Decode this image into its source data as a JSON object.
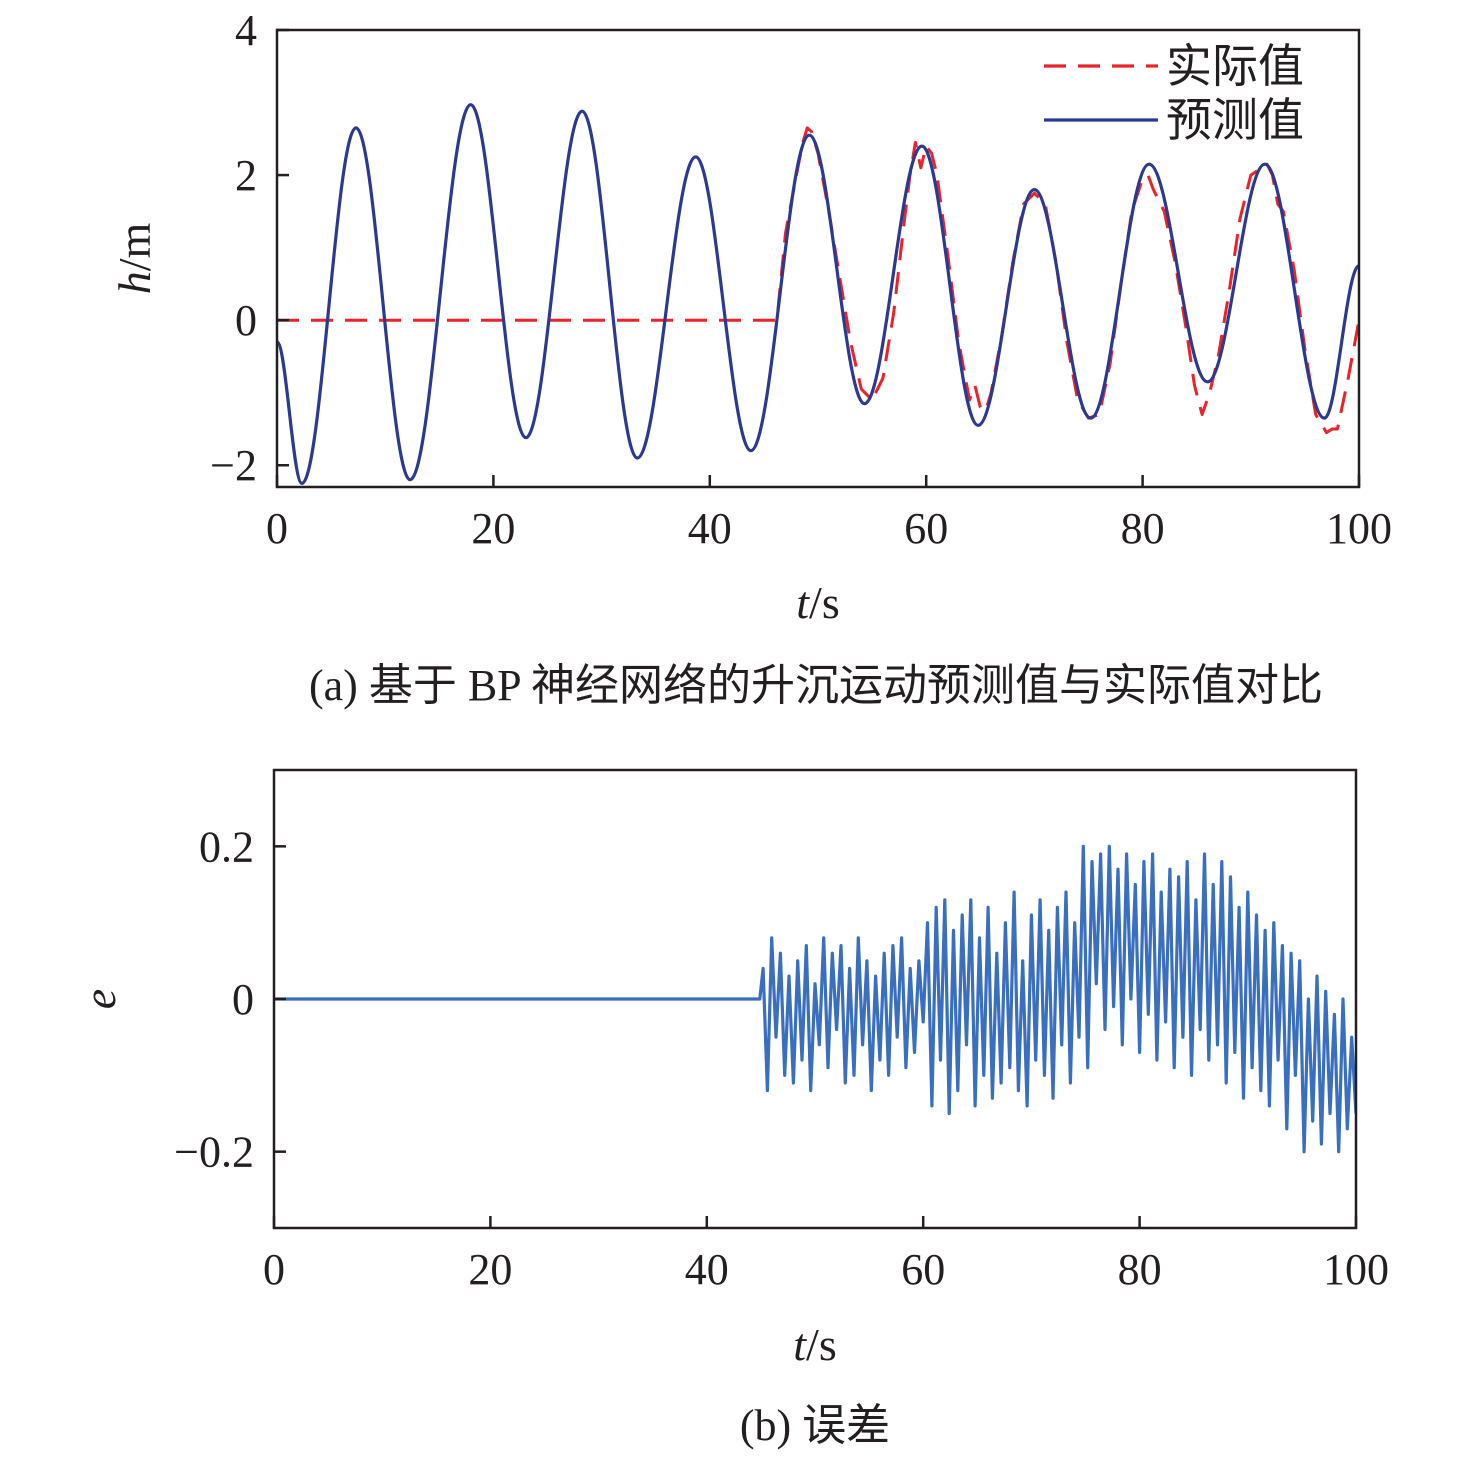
{
  "chart_data": [
    {
      "type": "line",
      "caption": "(a) 基于 BP 神经网络的升沉运动预测值与实际值对比",
      "xlabel": {
        "var": "t",
        "unit": "/s"
      },
      "ylabel": {
        "var": "h",
        "unit": "/m"
      },
      "xlim": [
        0,
        100
      ],
      "ylim": [
        -2.3,
        4
      ],
      "xticks": [
        0,
        20,
        40,
        60,
        80,
        100
      ],
      "yticks": [
        -2,
        0,
        2,
        4
      ],
      "ytick_labels": [
        "−2",
        "0",
        "2",
        "4"
      ],
      "legend_position": "top-right",
      "grid": false,
      "series": [
        {
          "name": "实际值",
          "style": "dashed",
          "color": "#e8232a",
          "x": [
            0,
            46.2,
            47,
            48,
            48.6,
            49,
            49.4,
            50,
            51,
            52,
            53,
            54,
            55,
            56,
            57,
            58,
            58.5,
            59,
            59.5,
            60,
            60.5,
            61,
            62,
            63,
            64,
            64.5,
            65,
            65.5,
            66,
            67,
            68,
            69,
            70,
            71,
            72,
            73,
            74,
            75,
            76,
            77,
            78,
            79,
            80,
            80.5,
            81,
            82,
            83,
            84,
            84.8,
            85.5,
            86.2,
            87,
            88,
            89,
            90,
            91,
            91.5,
            92,
            92.5,
            93,
            94,
            95,
            96,
            97,
            97.5,
            98,
            99,
            100
          ],
          "y": [
            0,
            0,
            1.2,
            2.0,
            2.45,
            2.65,
            2.6,
            2.3,
            1.5,
            0.6,
            -0.3,
            -0.95,
            -1.1,
            -0.8,
            0.1,
            1.4,
            2.0,
            2.45,
            2.1,
            2.4,
            2.3,
            2.0,
            0.9,
            -0.3,
            -1.1,
            -0.9,
            -1.2,
            -1.25,
            -1.0,
            -0.2,
            0.8,
            1.6,
            1.75,
            1.6,
            0.8,
            -0.3,
            -1.1,
            -1.35,
            -1.3,
            -0.6,
            0.5,
            1.5,
            1.95,
            2.0,
            1.8,
            1.5,
            0.8,
            -0.1,
            -0.9,
            -1.3,
            -1.0,
            -0.5,
            0.4,
            1.4,
            2.0,
            2.1,
            2.15,
            2.0,
            1.6,
            1.5,
            0.7,
            -0.4,
            -1.3,
            -1.55,
            -1.5,
            -1.5,
            -0.8,
            0.0
          ]
        },
        {
          "name": "预测值",
          "style": "solid",
          "color": "#2b3990",
          "x": [
            0,
            2.3,
            7.3,
            12.3,
            17.9,
            23.0,
            28.2,
            33.3,
            38.7,
            43.8,
            49.2,
            54.3,
            59.6,
            64.8,
            70.0,
            75.2,
            80.6,
            86.0,
            91.3,
            96.8,
            100
          ],
          "y": [
            -0.3,
            -2.25,
            2.65,
            -2.2,
            2.97,
            -1.62,
            2.88,
            -1.9,
            2.25,
            -1.8,
            2.55,
            -1.15,
            2.4,
            -1.45,
            1.8,
            -1.35,
            2.15,
            -0.85,
            2.15,
            -1.35,
            0.75
          ]
        }
      ]
    },
    {
      "type": "line",
      "caption": "(b) 误差",
      "xlabel": {
        "var": "t",
        "unit": "/s"
      },
      "ylabel": {
        "var": "e",
        "unit": ""
      },
      "xlim": [
        0,
        100
      ],
      "ylim": [
        -0.3,
        0.3
      ],
      "xticks": [
        0,
        20,
        40,
        60,
        80,
        100
      ],
      "yticks": [
        -0.2,
        0,
        0.2
      ],
      "ytick_labels": [
        "−0.2",
        "0",
        "0.2"
      ],
      "grid": false,
      "series": [
        {
          "color": "#3a6fc0",
          "style": "solid",
          "x": [
            0,
            44.9,
            45.2,
            45.6,
            46.0,
            46.4,
            46.8,
            47.2,
            47.6,
            48.0,
            48.4,
            48.8,
            49.2,
            49.6,
            50.0,
            50.4,
            50.8,
            51.2,
            51.6,
            52.0,
            52.4,
            52.8,
            53.2,
            53.6,
            54.0,
            54.4,
            54.8,
            55.2,
            55.6,
            56.0,
            56.4,
            56.8,
            57.2,
            57.6,
            58.0,
            58.4,
            58.8,
            59.2,
            59.6,
            60.0,
            60.4,
            60.8,
            61.2,
            61.6,
            62.0,
            62.4,
            62.8,
            63.2,
            63.6,
            64.0,
            64.4,
            64.8,
            65.2,
            65.6,
            66.0,
            66.4,
            66.8,
            67.2,
            67.6,
            68.0,
            68.4,
            68.8,
            69.2,
            69.6,
            70.0,
            70.4,
            70.8,
            71.2,
            71.6,
            72.0,
            72.4,
            72.8,
            73.2,
            73.6,
            74.0,
            74.4,
            74.8,
            75.2,
            75.6,
            76.0,
            76.4,
            76.8,
            77.2,
            77.6,
            78.0,
            78.4,
            78.8,
            79.2,
            79.6,
            80.0,
            80.4,
            80.8,
            81.2,
            81.6,
            82.0,
            82.4,
            82.8,
            83.2,
            83.6,
            84.0,
            84.4,
            84.8,
            85.2,
            85.6,
            86.0,
            86.4,
            86.8,
            87.2,
            87.6,
            88.0,
            88.4,
            88.8,
            89.2,
            89.6,
            90.0,
            90.4,
            90.8,
            91.2,
            91.6,
            92.0,
            92.4,
            92.8,
            93.2,
            93.6,
            94.0,
            94.4,
            94.8,
            95.2,
            95.6,
            96.0,
            96.4,
            96.8,
            97.2,
            97.6,
            98.0,
            98.4,
            98.8,
            99.2,
            99.6,
            100
          ],
          "y": [
            0,
            0,
            0.04,
            -0.12,
            0.08,
            -0.05,
            0.06,
            -0.1,
            0.03,
            -0.11,
            0.05,
            -0.08,
            0.07,
            -0.12,
            0.02,
            -0.06,
            0.08,
            -0.09,
            0.06,
            -0.04,
            0.07,
            -0.11,
            0.04,
            -0.1,
            0.08,
            -0.06,
            0.05,
            -0.12,
            0.03,
            -0.08,
            0.06,
            -0.1,
            0.07,
            -0.05,
            0.08,
            -0.09,
            0.04,
            -0.07,
            0.05,
            -0.03,
            0.1,
            -0.14,
            0.12,
            -0.08,
            0.13,
            -0.15,
            0.09,
            -0.12,
            0.11,
            -0.06,
            0.13,
            -0.14,
            0.08,
            -0.1,
            0.12,
            -0.13,
            0.06,
            -0.11,
            0.1,
            -0.09,
            0.14,
            -0.12,
            0.05,
            -0.14,
            0.11,
            -0.08,
            0.13,
            -0.1,
            0.09,
            -0.13,
            0.12,
            -0.06,
            0.14,
            -0.11,
            0.1,
            -0.05,
            0.2,
            -0.09,
            0.18,
            0.02,
            0.19,
            -0.04,
            0.2,
            -0.01,
            0.17,
            -0.06,
            0.19,
            0.0,
            0.15,
            -0.07,
            0.18,
            -0.02,
            0.19,
            -0.08,
            0.14,
            -0.03,
            0.17,
            -0.09,
            0.16,
            -0.05,
            0.18,
            -0.1,
            0.13,
            -0.04,
            0.19,
            -0.08,
            0.15,
            -0.06,
            0.18,
            -0.11,
            0.16,
            -0.07,
            0.12,
            -0.13,
            0.14,
            -0.09,
            0.11,
            -0.12,
            0.09,
            -0.14,
            0.1,
            -0.08,
            0.07,
            -0.17,
            0.06,
            -0.1,
            0.05,
            -0.2,
            0.0,
            -0.16,
            0.03,
            -0.19,
            0.01,
            -0.15,
            -0.02,
            -0.2,
            0.0,
            -0.17,
            -0.05,
            -0.15
          ]
        }
      ]
    }
  ]
}
